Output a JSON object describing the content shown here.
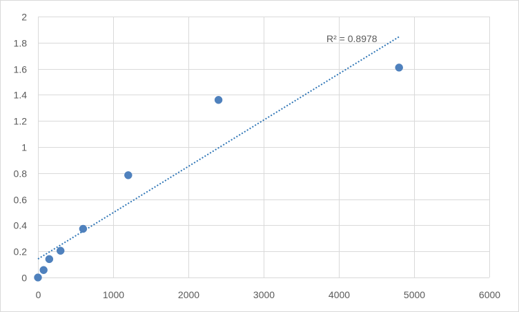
{
  "chart_data": {
    "type": "scatter",
    "title": "",
    "xlabel": "",
    "ylabel": "",
    "xlim": [
      0,
      6000
    ],
    "ylim": [
      0,
      2
    ],
    "x_ticks": [
      0,
      1000,
      2000,
      3000,
      4000,
      5000,
      6000
    ],
    "x_tick_labels": [
      "0",
      "1000",
      "2000",
      "3000",
      "4000",
      "5000",
      "6000"
    ],
    "y_ticks": [
      0,
      0.2,
      0.4,
      0.6,
      0.8,
      1,
      1.2,
      1.4,
      1.6,
      1.8,
      2
    ],
    "y_tick_labels": [
      "0",
      "0.2",
      "0.4",
      "0.6",
      "0.8",
      "1",
      "1.2",
      "1.4",
      "1.6",
      "1.8",
      "2"
    ],
    "grid": true,
    "series": [
      {
        "x": [
          0,
          75,
          150,
          300,
          600,
          1200,
          2400,
          4800
        ],
        "y": [
          0.0,
          0.057,
          0.141,
          0.205,
          0.373,
          0.784,
          1.361,
          1.609
        ]
      }
    ],
    "trendline": {
      "type": "linear",
      "style": "dotted",
      "x_range": [
        0,
        4800
      ],
      "y_range": [
        0.142,
        1.845
      ]
    },
    "annotation": "R² = 0.8978",
    "colors": {
      "marker": "#4f81bd",
      "trendline": "#2e75b6",
      "grid": "#d9d9d9",
      "text": "#595959"
    }
  }
}
